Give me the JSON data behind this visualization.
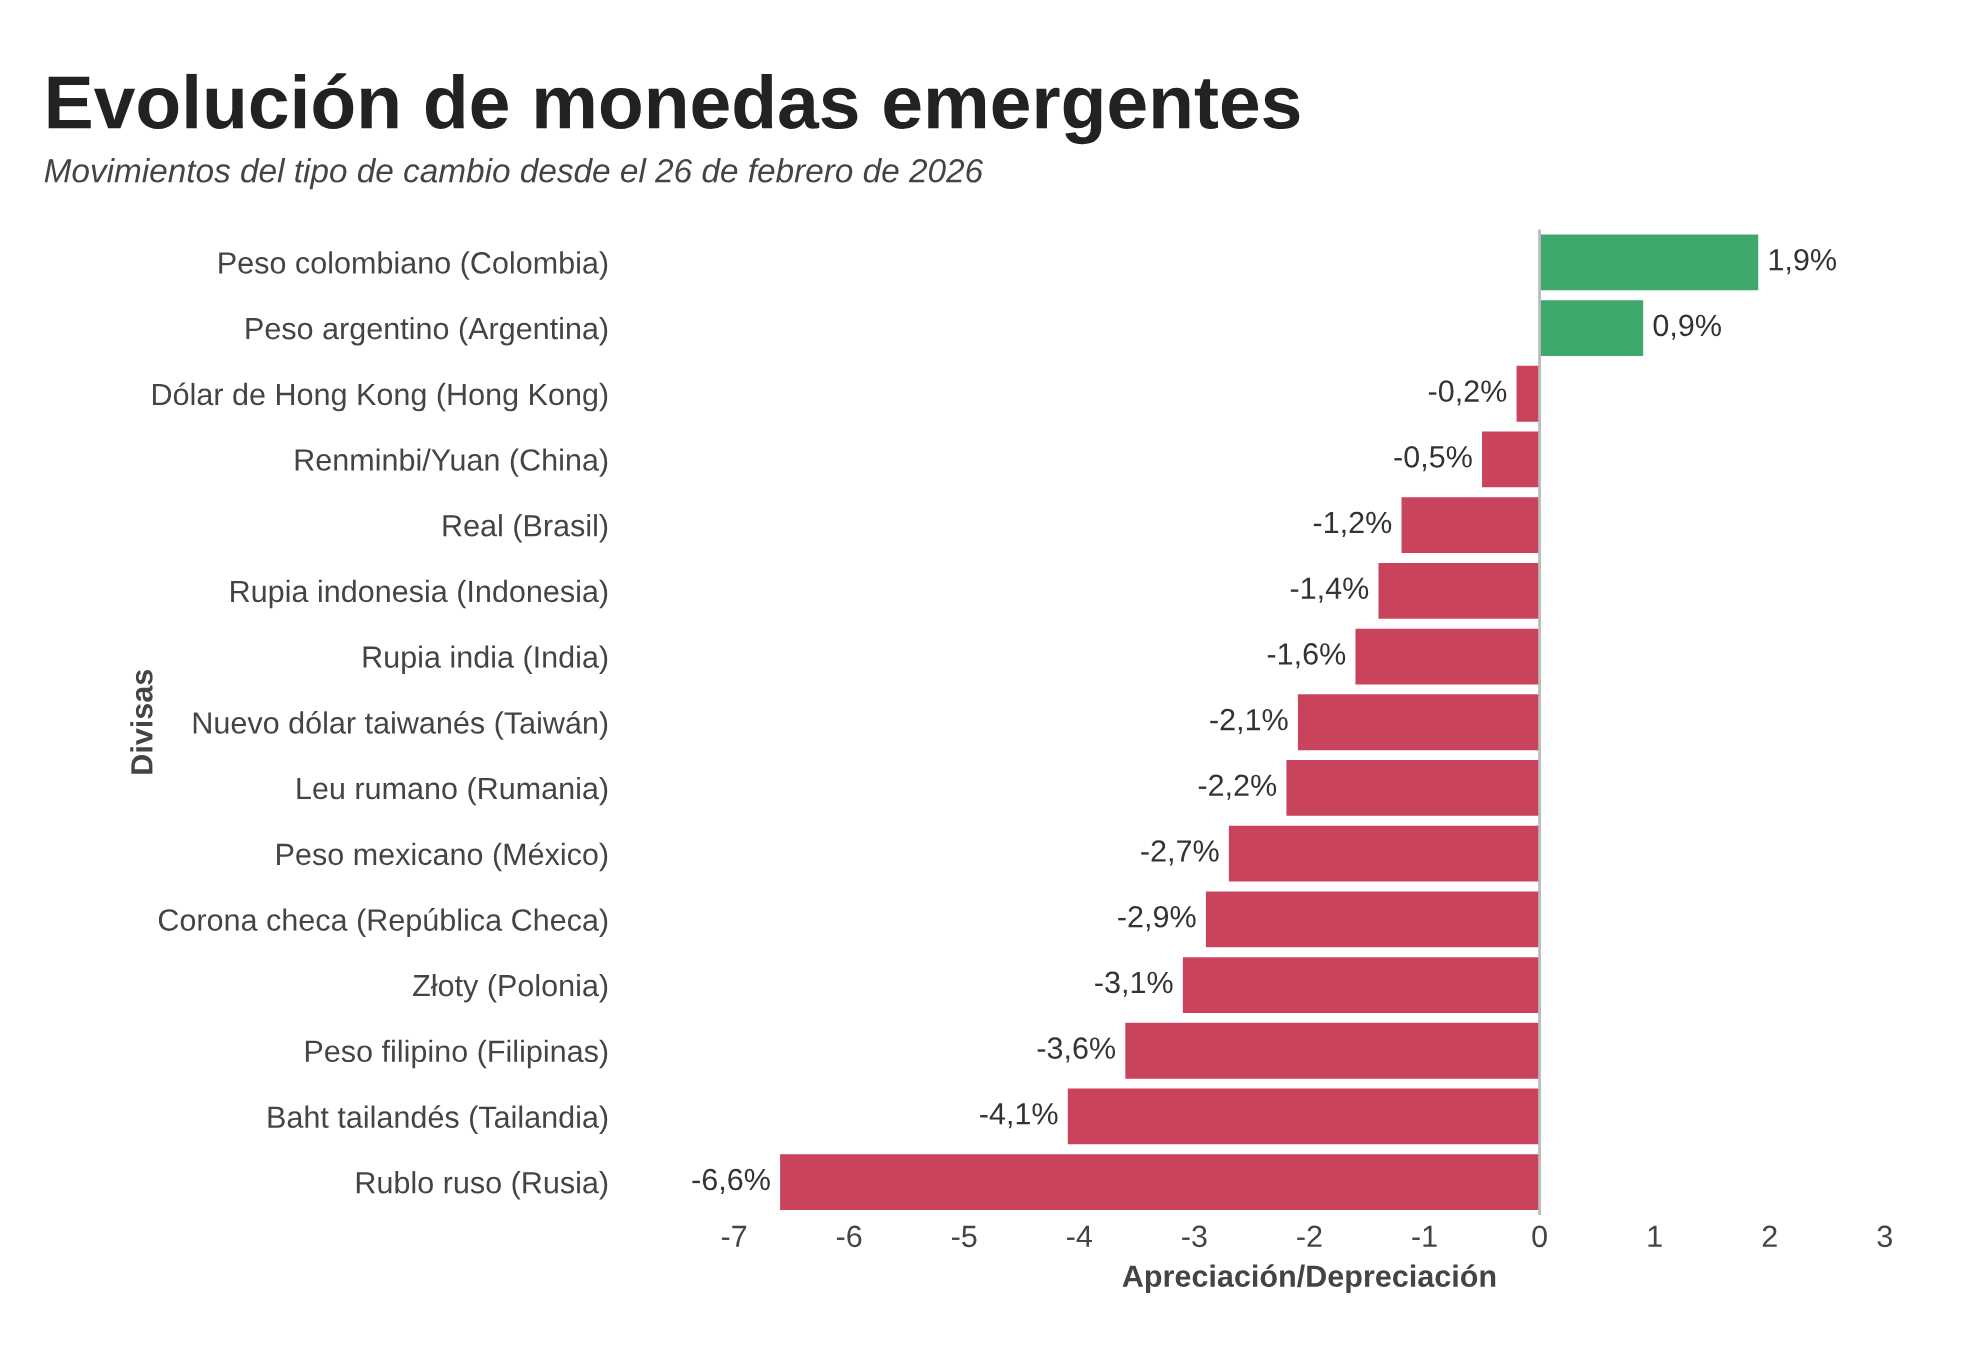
{
  "chart_data": {
    "type": "bar",
    "orientation": "horizontal",
    "title": "Evolución de monedas emergentes",
    "subtitle": "Movimientos del tipo de cambio desde el 26 de febrero de 2026",
    "xlabel": "Apreciación/Depreciación",
    "ylabel": "Divisas",
    "categories": [
      "Peso colombiano (Colombia)",
      "Peso argentino (Argentina)",
      "Dólar de Hong Kong (Hong Kong)",
      "Renminbi/Yuan (China)",
      "Real (Brasil)",
      "Rupia indonesia (Indonesia)",
      "Rupia india (India)",
      "Nuevo dólar taiwanés (Taiwán)",
      "Leu rumano (Rumania)",
      "Peso mexicano (México)",
      "Corona checa (República Checa)",
      "Złoty (Polonia)",
      "Peso filipino (Filipinas)",
      "Baht tailandés (Tailandia)",
      "Rublo ruso (Rusia)"
    ],
    "values": [
      1.9,
      0.9,
      -0.2,
      -0.5,
      -1.2,
      -1.4,
      -1.6,
      -2.1,
      -2.2,
      -2.7,
      -2.9,
      -3.1,
      -3.6,
      -4.1,
      -6.6
    ],
    "value_labels": [
      "1,9%",
      "0,9%",
      "-0,2%",
      "-0,5%",
      "-1,2%",
      "-1,4%",
      "-1,6%",
      "-2,1%",
      "-2,2%",
      "-2,7%",
      "-2,9%",
      "-3,1%",
      "-3,6%",
      "-4,1%",
      "-6,6%"
    ],
    "colors": [
      "#3ea86c",
      "#3ea86c",
      "#c9435c",
      "#c9435c",
      "#c9435c",
      "#c9435c",
      "#c9435c",
      "#c9435c",
      "#c9435c",
      "#c9435c",
      "#c9435c",
      "#c9435c",
      "#c9435c",
      "#c9435c",
      "#c9435c"
    ],
    "xlim": [
      -7,
      3
    ],
    "xticks": [
      -7,
      -6,
      -5,
      -4,
      -3,
      -2,
      -1,
      0,
      1,
      2,
      3
    ],
    "ref_lines": [
      {
        "axis": "x",
        "value": 0,
        "color": "#bbbbbb"
      }
    ],
    "grid": false
  }
}
